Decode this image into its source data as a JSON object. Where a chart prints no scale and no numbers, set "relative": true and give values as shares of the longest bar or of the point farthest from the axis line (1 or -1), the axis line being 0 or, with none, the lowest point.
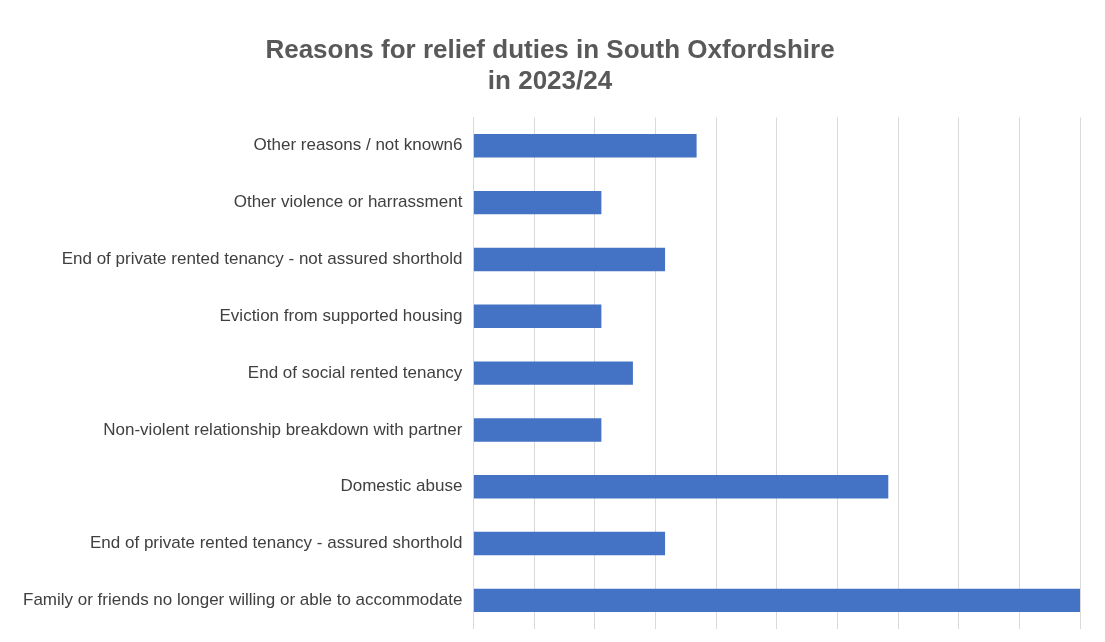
{
  "chart_data": {
    "type": "bar",
    "orientation": "horizontal",
    "relative": true,
    "title": "Reasons for relief duties in South Oxfordshire\nin 2023/24",
    "categories": [
      "Other reasons / not known6",
      "Other violence or harrassment",
      "End of private rented tenancy - not assured shorthold",
      "Eviction from supported housing",
      "End of social rented tenancy",
      "Non-violent relationship breakdown with partner",
      "Domestic abuse",
      "End of private rented tenancy - assured shorthold",
      "Family or friends no longer willing or able to accommodate"
    ],
    "values": [
      0.368,
      0.211,
      0.316,
      0.211,
      0.263,
      0.211,
      0.684,
      0.316,
      1
    ],
    "color": "#4472c4",
    "grid": "x",
    "legend": false
  }
}
